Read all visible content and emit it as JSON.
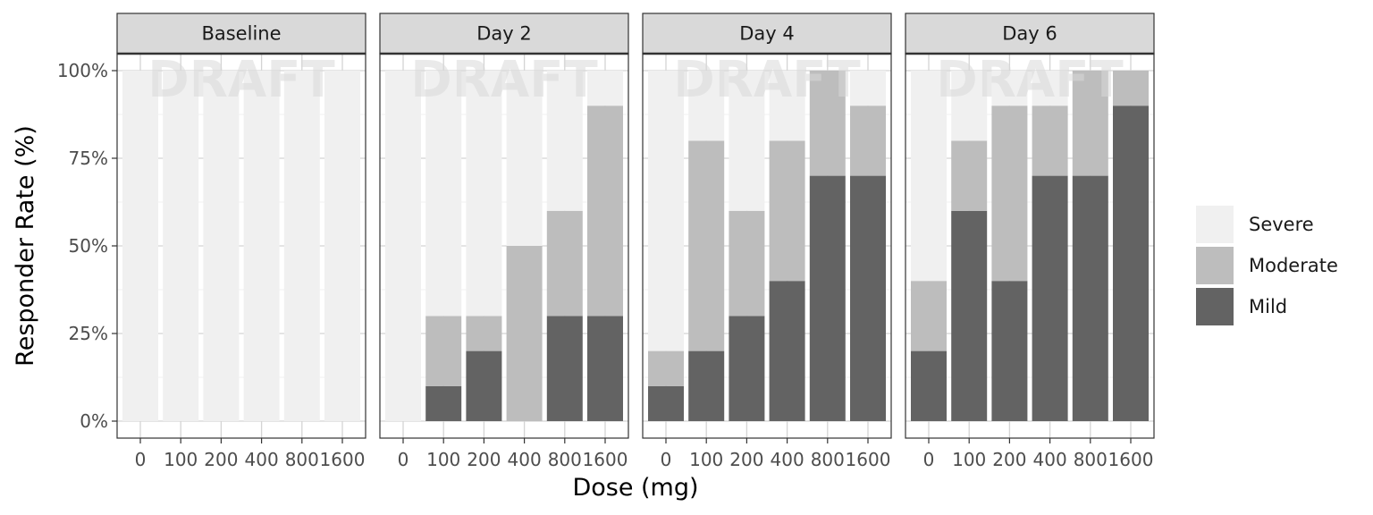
{
  "chart_data": {
    "type": "bar",
    "stacked": true,
    "xlabel": "Dose (mg)",
    "ylabel": "Responder Rate (%)",
    "ylim": [
      0,
      100
    ],
    "yticks": [
      0,
      25,
      50,
      75,
      100
    ],
    "ytick_labels": [
      "0%",
      "25%",
      "50%",
      "75%",
      "100%"
    ],
    "categories": [
      "0",
      "100",
      "200",
      "400",
      "800",
      "1600"
    ],
    "watermark": "DRAFT",
    "legend_position": "right",
    "legend": [
      {
        "name": "Severe",
        "color": "#f0f0f0"
      },
      {
        "name": "Moderate",
        "color": "#bdbdbd"
      },
      {
        "name": "Mild",
        "color": "#636363"
      }
    ],
    "panels": [
      {
        "title": "Baseline",
        "series": [
          {
            "name": "Mild",
            "values": [
              0,
              0,
              0,
              0,
              0,
              0
            ]
          },
          {
            "name": "Moderate",
            "values": [
              0,
              0,
              0,
              0,
              0,
              0
            ]
          },
          {
            "name": "Severe",
            "values": [
              100,
              100,
              100,
              100,
              100,
              100
            ]
          }
        ]
      },
      {
        "title": "Day 2",
        "series": [
          {
            "name": "Mild",
            "values": [
              0,
              10,
              20,
              0,
              30,
              30
            ]
          },
          {
            "name": "Moderate",
            "values": [
              0,
              20,
              10,
              50,
              30,
              60
            ]
          },
          {
            "name": "Severe",
            "values": [
              100,
              70,
              70,
              50,
              40,
              10
            ]
          }
        ]
      },
      {
        "title": "Day 4",
        "series": [
          {
            "name": "Mild",
            "values": [
              10,
              20,
              30,
              40,
              70,
              70
            ]
          },
          {
            "name": "Moderate",
            "values": [
              10,
              60,
              30,
              40,
              30,
              20
            ]
          },
          {
            "name": "Severe",
            "values": [
              80,
              20,
              40,
              20,
              0,
              10
            ]
          }
        ]
      },
      {
        "title": "Day 6",
        "series": [
          {
            "name": "Mild",
            "values": [
              20,
              60,
              40,
              70,
              70,
              90
            ]
          },
          {
            "name": "Moderate",
            "values": [
              20,
              20,
              50,
              20,
              30,
              10
            ]
          },
          {
            "name": "Severe",
            "values": [
              60,
              20,
              10,
              10,
              0,
              0
            ]
          }
        ]
      }
    ]
  }
}
